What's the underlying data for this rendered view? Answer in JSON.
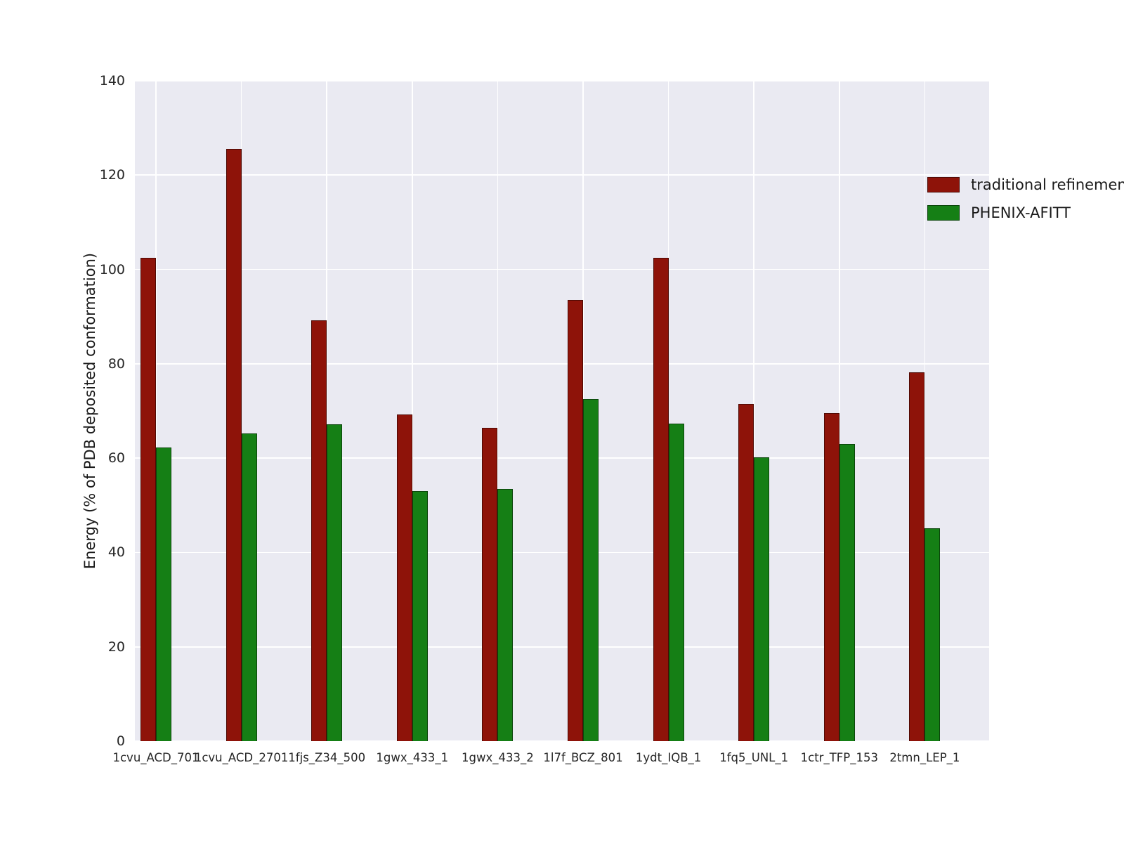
{
  "chart_data": {
    "type": "bar",
    "title": "",
    "xlabel": "",
    "ylabel": "Energy (% of PDB deposited conformation)",
    "ylim": [
      0,
      140
    ],
    "yticks": [
      0,
      20,
      40,
      60,
      80,
      100,
      120,
      140
    ],
    "grid": true,
    "plot_background": "#eaeaf2",
    "grid_color": "#ffffff",
    "legend_position": "upper right",
    "categories": [
      "1cvu_ACD_701",
      "1cvu_ACD_2701",
      "1fjs_Z34_500",
      "1gwx_433_1",
      "1gwx_433_2",
      "1l7f_BCZ_801",
      "1ydt_IQB_1",
      "1fq5_UNL_1",
      "1ctr_TFP_153",
      "2tmn_LEP_1"
    ],
    "series": [
      {
        "name": "traditional refinement",
        "color": "#8e1309",
        "values": [
          102.5,
          125.5,
          89.2,
          69.2,
          66.5,
          93.5,
          102.5,
          71.5,
          69.5,
          78.2
        ]
      },
      {
        "name": "PHENIX-AFITT",
        "color": "#157f15",
        "values": [
          62.2,
          65.2,
          67.2,
          53.0,
          53.5,
          72.5,
          67.3,
          60.2,
          63.0,
          45.2
        ]
      }
    ]
  }
}
